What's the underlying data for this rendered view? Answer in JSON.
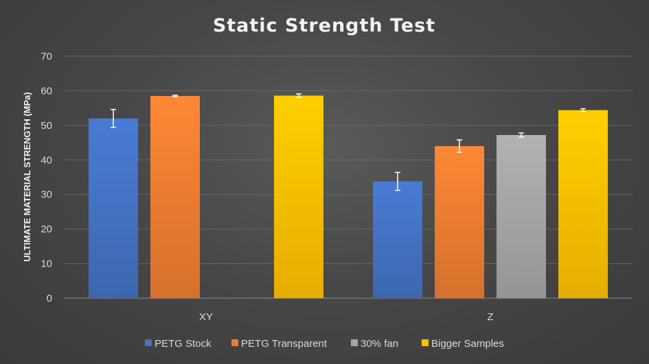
{
  "chart_data": {
    "type": "bar",
    "title": "Static Strength Test",
    "xlabel": "",
    "ylabel": "ULTIMATE MATERIAL STRENGTH (MPa)",
    "ylim": [
      0,
      70
    ],
    "yticks": [
      0,
      10,
      20,
      30,
      40,
      50,
      60,
      70
    ],
    "categories": [
      "XY",
      "Z"
    ],
    "grid": true,
    "legend_position": "bottom",
    "series": [
      {
        "name": "PETG Stock",
        "color": "#4472c4",
        "values": [
          52,
          33.8
        ],
        "errors": [
          2.6,
          2.6
        ]
      },
      {
        "name": "PETG Transparent",
        "color": "#ed7d31",
        "values": [
          58.5,
          44
        ],
        "errors": [
          0.2,
          1.8
        ]
      },
      {
        "name": "30% fan",
        "color": "#a5a5a5",
        "values": [
          null,
          47.2
        ],
        "errors": [
          null,
          0.6
        ]
      },
      {
        "name": "Bigger Samples",
        "color": "#ffc000",
        "values": [
          58.6,
          54.4
        ],
        "errors": [
          0.5,
          0.4
        ]
      }
    ]
  }
}
